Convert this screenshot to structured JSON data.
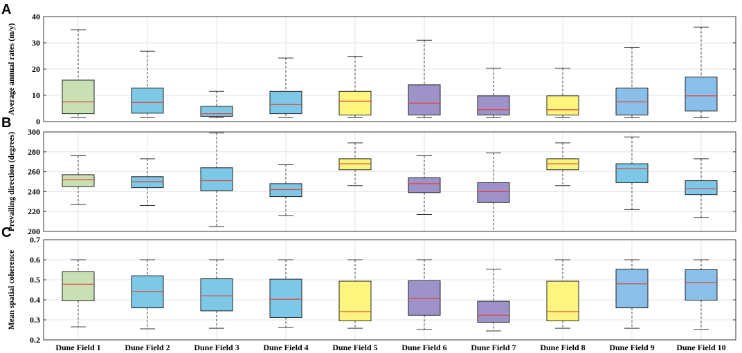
{
  "colors": {
    "green": "#c9dfb4",
    "blue": "#7dc8e6",
    "yellow": "#fdf57e",
    "purple": "#9d93c8",
    "steelblue": "#89bfe8",
    "median": "#e0433b"
  },
  "chart_data": [
    {
      "type": "box",
      "panel": "A",
      "ylabel": "Average annual rates (m/y)",
      "ylim": [
        0,
        40
      ],
      "yticks": [
        "0",
        "10",
        "20",
        "30",
        "40"
      ],
      "ytick_values": [
        0,
        10,
        20,
        30,
        40
      ],
      "categories": [
        "Dune Field 1",
        "Dune Field 2",
        "Dune Field  3",
        "Dune Field  4",
        "Dune Field  5",
        "Dune Field  6",
        "Dune Field  7",
        "Dune Field  8",
        "Dune Field  9",
        "Dune Field  10"
      ],
      "box_colors": [
        "green",
        "blue",
        "blue",
        "blue",
        "yellow",
        "purple",
        "purple",
        "yellow",
        "steelblue",
        "steelblue"
      ],
      "boxes": [
        {
          "min": 1.5,
          "q1": 3,
          "median": 7.5,
          "q3": 15.8,
          "max": 35
        },
        {
          "min": 1.5,
          "q1": 3.2,
          "median": 7.3,
          "q3": 12.8,
          "max": 26.8
        },
        {
          "min": 1.5,
          "q1": 2,
          "median": 3,
          "q3": 5.8,
          "max": 11.5
        },
        {
          "min": 1.5,
          "q1": 3,
          "median": 6.5,
          "q3": 11.5,
          "max": 24.2
        },
        {
          "min": 1.5,
          "q1": 2.5,
          "median": 7.8,
          "q3": 11.5,
          "max": 24.8
        },
        {
          "min": 1.5,
          "q1": 2.5,
          "median": 7,
          "q3": 14,
          "max": 31
        },
        {
          "min": 1.5,
          "q1": 2.5,
          "median": 4.5,
          "q3": 9.8,
          "max": 20.3
        },
        {
          "min": 1.5,
          "q1": 2.5,
          "median": 4.5,
          "q3": 9.8,
          "max": 20.3
        },
        {
          "min": 1.5,
          "q1": 2.5,
          "median": 7.5,
          "q3": 12.8,
          "max": 28.3
        },
        {
          "min": 1.5,
          "q1": 4,
          "median": 9.8,
          "q3": 17,
          "max": 36
        }
      ]
    },
    {
      "type": "box",
      "panel": "B",
      "ylabel": "Prevailing direction (degrees)",
      "ylim": [
        200,
        300
      ],
      "yticks": [
        "200",
        "220",
        "240",
        "260",
        "280",
        "300"
      ],
      "ytick_values": [
        200,
        220,
        240,
        260,
        280,
        300
      ],
      "categories": [
        "Dune Field 1",
        "Dune Field 2",
        "Dune Field  3",
        "Dune Field  4",
        "Dune Field  5",
        "Dune Field  6",
        "Dune Field  7",
        "Dune Field  8",
        "Dune Field  9",
        "Dune Field  10"
      ],
      "box_colors": [
        "green",
        "blue",
        "blue",
        "blue",
        "yellow",
        "purple",
        "purple",
        "yellow",
        "blue",
        "blue"
      ],
      "boxes": [
        {
          "min": 227,
          "q1": 245,
          "median": 252,
          "q3": 257,
          "max": 276
        },
        {
          "min": 226,
          "q1": 244,
          "median": 250,
          "q3": 255,
          "max": 273
        },
        {
          "min": 205,
          "q1": 241,
          "median": 251,
          "q3": 264,
          "max": 299
        },
        {
          "min": 216,
          "q1": 235,
          "median": 242,
          "q3": 248,
          "max": 267
        },
        {
          "min": 246,
          "q1": 262,
          "median": 268,
          "q3": 273,
          "max": 289
        },
        {
          "min": 217,
          "q1": 239,
          "median": 248,
          "q3": 254,
          "max": 276
        },
        {
          "min": 200,
          "q1": 229,
          "median": 240,
          "q3": 249,
          "max": 279
        },
        {
          "min": 246,
          "q1": 262,
          "median": 268,
          "q3": 273,
          "max": 289
        },
        {
          "min": 222,
          "q1": 249,
          "median": 263,
          "q3": 268,
          "max": 295
        },
        {
          "min": 214,
          "q1": 237,
          "median": 243,
          "q3": 251,
          "max": 273
        }
      ]
    },
    {
      "type": "box",
      "panel": "C",
      "ylabel": "Mean spatial coherence",
      "ylim": [
        0.2,
        0.7
      ],
      "yticks": [
        "0.2",
        "0.3",
        "0.4",
        "0.5",
        "0.6",
        "0.7"
      ],
      "ytick_values": [
        0.2,
        0.3,
        0.4,
        0.5,
        0.6,
        0.7
      ],
      "categories": [
        "Dune Field 1",
        "Dune Field 2",
        "Dune Field  3",
        "Dune Field  4",
        "Dune Field  5",
        "Dune Field  6",
        "Dune Field  7",
        "Dune Field  8",
        "Dune Field  9",
        "Dune Field  10"
      ],
      "box_colors": [
        "green",
        "blue",
        "blue",
        "blue",
        "yellow",
        "purple",
        "purple",
        "yellow",
        "steelblue",
        "steelblue"
      ],
      "boxes": [
        {
          "min": 0.265,
          "q1": 0.395,
          "median": 0.478,
          "q3": 0.54,
          "max": 0.6
        },
        {
          "min": 0.255,
          "q1": 0.36,
          "median": 0.44,
          "q3": 0.52,
          "max": 0.6
        },
        {
          "min": 0.258,
          "q1": 0.345,
          "median": 0.42,
          "q3": 0.505,
          "max": 0.6
        },
        {
          "min": 0.262,
          "q1": 0.312,
          "median": 0.403,
          "q3": 0.503,
          "max": 0.6
        },
        {
          "min": 0.258,
          "q1": 0.295,
          "median": 0.34,
          "q3": 0.493,
          "max": 0.6
        },
        {
          "min": 0.252,
          "q1": 0.323,
          "median": 0.407,
          "q3": 0.495,
          "max": 0.6
        },
        {
          "min": 0.245,
          "q1": 0.288,
          "median": 0.323,
          "q3": 0.393,
          "max": 0.553
        },
        {
          "min": 0.258,
          "q1": 0.295,
          "median": 0.34,
          "q3": 0.493,
          "max": 0.6
        },
        {
          "min": 0.258,
          "q1": 0.36,
          "median": 0.48,
          "q3": 0.553,
          "max": 0.6
        },
        {
          "min": 0.252,
          "q1": 0.398,
          "median": 0.487,
          "q3": 0.55,
          "max": 0.6
        }
      ]
    }
  ]
}
